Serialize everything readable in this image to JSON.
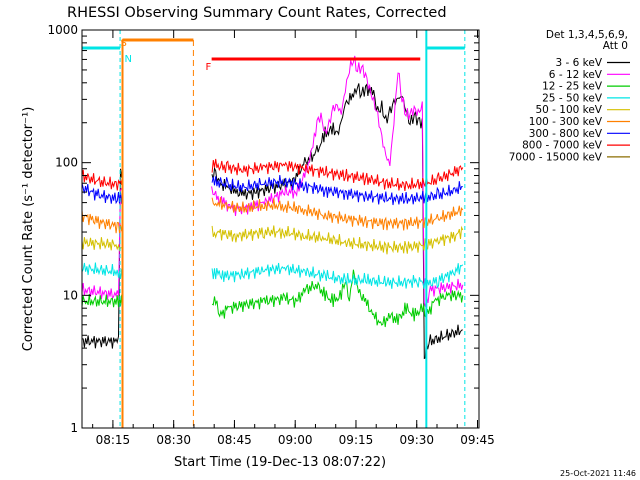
{
  "chart_data": {
    "type": "line",
    "title": "RHESSI Observing Summary Count Rates, Corrected",
    "xlabel": "Start Time (19-Dec-13 08:07:22)",
    "ylabel": "Corrected Count Rate (s⁻¹ detector⁻¹)",
    "x_unit": "minutes after 08:07:22",
    "xlim": [
      0,
      98
    ],
    "ylim": [
      1,
      1000
    ],
    "yscale": "log",
    "grid": false,
    "legend_position": "top-right",
    "x_ticks": [
      {
        "label": "08:15",
        "value": 7.63
      },
      {
        "label": "08:30",
        "value": 22.63
      },
      {
        "label": "08:45",
        "value": 37.63
      },
      {
        "label": "09:00",
        "value": 52.63
      },
      {
        "label": "09:15",
        "value": 67.63
      },
      {
        "label": "09:30",
        "value": 82.63
      },
      {
        "label": "09:45",
        "value": 97.63
      }
    ],
    "y_ticks": [
      {
        "label": "1",
        "value": 1
      },
      {
        "label": "10",
        "value": 10
      },
      {
        "label": "100",
        "value": 100
      },
      {
        "label": "1000",
        "value": 1000
      }
    ],
    "legend_header": [
      "Det 1,3,4,5,6,9,",
      "Att 0"
    ],
    "series": [
      {
        "name": "3 - 6 keV",
        "color": "#000000",
        "points": [
          [
            0,
            4.5
          ],
          [
            9,
            4.5
          ],
          [
            9.5,
            80
          ],
          [
            20,
            80
          ],
          [
            30,
            80
          ],
          [
            33,
            80
          ],
          [
            34,
            70
          ],
          [
            36,
            65
          ],
          [
            38,
            60
          ],
          [
            40,
            58
          ],
          [
            43,
            60
          ],
          [
            47,
            65
          ],
          [
            52,
            72
          ],
          [
            55,
            100
          ],
          [
            58,
            120
          ],
          [
            60,
            165
          ],
          [
            62,
            180
          ],
          [
            63,
            160
          ],
          [
            64,
            200
          ],
          [
            65,
            280
          ],
          [
            67,
            320
          ],
          [
            68,
            380
          ],
          [
            69,
            330
          ],
          [
            70,
            370
          ],
          [
            72,
            330
          ],
          [
            73,
            240
          ],
          [
            74,
            260
          ],
          [
            75,
            200
          ],
          [
            76,
            240
          ],
          [
            77,
            280
          ],
          [
            78,
            300
          ],
          [
            79,
            320
          ],
          [
            80,
            250
          ],
          [
            81,
            200
          ],
          [
            82,
            230
          ],
          [
            83,
            210
          ],
          [
            84,
            200
          ],
          [
            84.5,
            3
          ],
          [
            85,
            4
          ],
          [
            86,
            4.5
          ],
          [
            94,
            5.5
          ]
        ]
      },
      {
        "name": "6 - 12 keV",
        "color": "#ff00ff",
        "points": [
          [
            0,
            11
          ],
          [
            9,
            10
          ],
          [
            9.5,
            60
          ],
          [
            25,
            60
          ],
          [
            32,
            60
          ],
          [
            33,
            55
          ],
          [
            35,
            50
          ],
          [
            37,
            45
          ],
          [
            40,
            45
          ],
          [
            45,
            50
          ],
          [
            50,
            60
          ],
          [
            53,
            60
          ],
          [
            55,
            80
          ],
          [
            57,
            130
          ],
          [
            58,
            200
          ],
          [
            59,
            220
          ],
          [
            60,
            160
          ],
          [
            61,
            190
          ],
          [
            62,
            250
          ],
          [
            63,
            260
          ],
          [
            64,
            230
          ],
          [
            65,
            350
          ],
          [
            66,
            500
          ],
          [
            67,
            600
          ],
          [
            68,
            500
          ],
          [
            69,
            520
          ],
          [
            70,
            450
          ],
          [
            71,
            350
          ],
          [
            72,
            280
          ],
          [
            73,
            220
          ],
          [
            74,
            150
          ],
          [
            75,
            110
          ],
          [
            76,
            95
          ],
          [
            77,
            200
          ],
          [
            78,
            500
          ],
          [
            79,
            300
          ],
          [
            80,
            230
          ],
          [
            81,
            230
          ],
          [
            82,
            250
          ],
          [
            83,
            230
          ],
          [
            84,
            260
          ],
          [
            84.5,
            8
          ],
          [
            86,
            11
          ],
          [
            94,
            12
          ]
        ]
      },
      {
        "name": "12 - 25 keV",
        "color": "#00cc00",
        "points": [
          [
            0,
            9
          ],
          [
            9,
            9
          ],
          [
            9.5,
            9
          ],
          [
            33,
            9
          ],
          [
            34,
            7
          ],
          [
            36,
            8
          ],
          [
            40,
            8.5
          ],
          [
            45,
            9
          ],
          [
            50,
            9.5
          ],
          [
            53,
            9
          ],
          [
            55,
            11
          ],
          [
            58,
            12
          ],
          [
            60,
            10
          ],
          [
            62,
            9
          ],
          [
            64,
            10
          ],
          [
            65,
            13
          ],
          [
            66,
            9
          ],
          [
            67,
            15
          ],
          [
            68,
            11
          ],
          [
            70,
            9
          ],
          [
            72,
            7
          ],
          [
            74,
            6
          ],
          [
            76,
            7
          ],
          [
            78,
            6.5
          ],
          [
            80,
            8
          ],
          [
            82,
            7
          ],
          [
            84,
            8
          ],
          [
            85,
            7
          ],
          [
            87,
            9
          ],
          [
            90,
            10
          ],
          [
            94,
            10
          ]
        ]
      },
      {
        "name": "25 - 50 keV",
        "color": "#00e5e5",
        "points": [
          [
            0,
            16
          ],
          [
            9,
            15
          ],
          [
            9.5,
            15
          ],
          [
            33,
            15
          ],
          [
            35,
            14
          ],
          [
            40,
            14.5
          ],
          [
            45,
            15.5
          ],
          [
            50,
            16
          ],
          [
            55,
            15
          ],
          [
            60,
            14
          ],
          [
            65,
            13
          ],
          [
            70,
            13
          ],
          [
            75,
            12.5
          ],
          [
            80,
            12.5
          ],
          [
            83,
            13
          ],
          [
            85,
            12
          ],
          [
            88,
            13
          ],
          [
            92,
            15
          ],
          [
            94,
            17
          ]
        ]
      },
      {
        "name": "50 - 100 keV",
        "color": "#d4c000",
        "points": [
          [
            0,
            25
          ],
          [
            9,
            24
          ],
          [
            9.5,
            24
          ],
          [
            33,
            30
          ],
          [
            38,
            28
          ],
          [
            45,
            30
          ],
          [
            50,
            30
          ],
          [
            55,
            28
          ],
          [
            60,
            27
          ],
          [
            65,
            25
          ],
          [
            70,
            24
          ],
          [
            75,
            23
          ],
          [
            80,
            23
          ],
          [
            85,
            24
          ],
          [
            88,
            26
          ],
          [
            92,
            28
          ],
          [
            94,
            31
          ]
        ]
      },
      {
        "name": "100 - 300 keV",
        "color": "#ff8000",
        "points": [
          [
            0,
            40
          ],
          [
            4,
            36
          ],
          [
            9,
            33
          ],
          [
            9.5,
            33
          ],
          [
            33,
            50
          ],
          [
            36,
            47
          ],
          [
            40,
            45
          ],
          [
            45,
            48
          ],
          [
            50,
            47
          ],
          [
            55,
            44
          ],
          [
            60,
            40
          ],
          [
            65,
            38
          ],
          [
            70,
            36
          ],
          [
            75,
            35
          ],
          [
            80,
            35
          ],
          [
            85,
            36
          ],
          [
            88,
            38
          ],
          [
            92,
            42
          ],
          [
            94,
            44
          ]
        ]
      },
      {
        "name": "300 - 800 keV",
        "color": "#0000ff",
        "points": [
          [
            0,
            65
          ],
          [
            4,
            57
          ],
          [
            9,
            53
          ],
          [
            9.5,
            53
          ],
          [
            33,
            72
          ],
          [
            36,
            68
          ],
          [
            40,
            65
          ],
          [
            45,
            70
          ],
          [
            50,
            72
          ],
          [
            55,
            67
          ],
          [
            60,
            62
          ],
          [
            65,
            59
          ],
          [
            70,
            56
          ],
          [
            75,
            54
          ],
          [
            80,
            53
          ],
          [
            85,
            55
          ],
          [
            88,
            57
          ],
          [
            92,
            62
          ],
          [
            94,
            66
          ]
        ]
      },
      {
        "name": "800 - 7000 keV",
        "color": "#ff0000",
        "points": [
          [
            0,
            80
          ],
          [
            4,
            72
          ],
          [
            9,
            68
          ],
          [
            9.5,
            68
          ],
          [
            33,
            95
          ],
          [
            36,
            92
          ],
          [
            40,
            88
          ],
          [
            45,
            92
          ],
          [
            50,
            96
          ],
          [
            55,
            90
          ],
          [
            60,
            85
          ],
          [
            65,
            80
          ],
          [
            70,
            76
          ],
          [
            75,
            70
          ],
          [
            80,
            67
          ],
          [
            85,
            70
          ],
          [
            88,
            75
          ],
          [
            92,
            85
          ],
          [
            94,
            92
          ]
        ]
      },
      {
        "name": "7000 - 15000 keV",
        "color": "#8b6e00",
        "points": []
      }
    ],
    "annotations": [
      {
        "label": "S",
        "color": "#ff8000",
        "x": 9,
        "y_frac": 0.02
      },
      {
        "label": "N",
        "color": "#00e5e5",
        "x": 10,
        "y_frac": 0.06
      },
      {
        "label": "F",
        "color": "#ff0000",
        "x": 30,
        "y_frac": 0.08
      }
    ]
  },
  "footer": {
    "timestamp": "25-Oct-2021 11:46"
  }
}
